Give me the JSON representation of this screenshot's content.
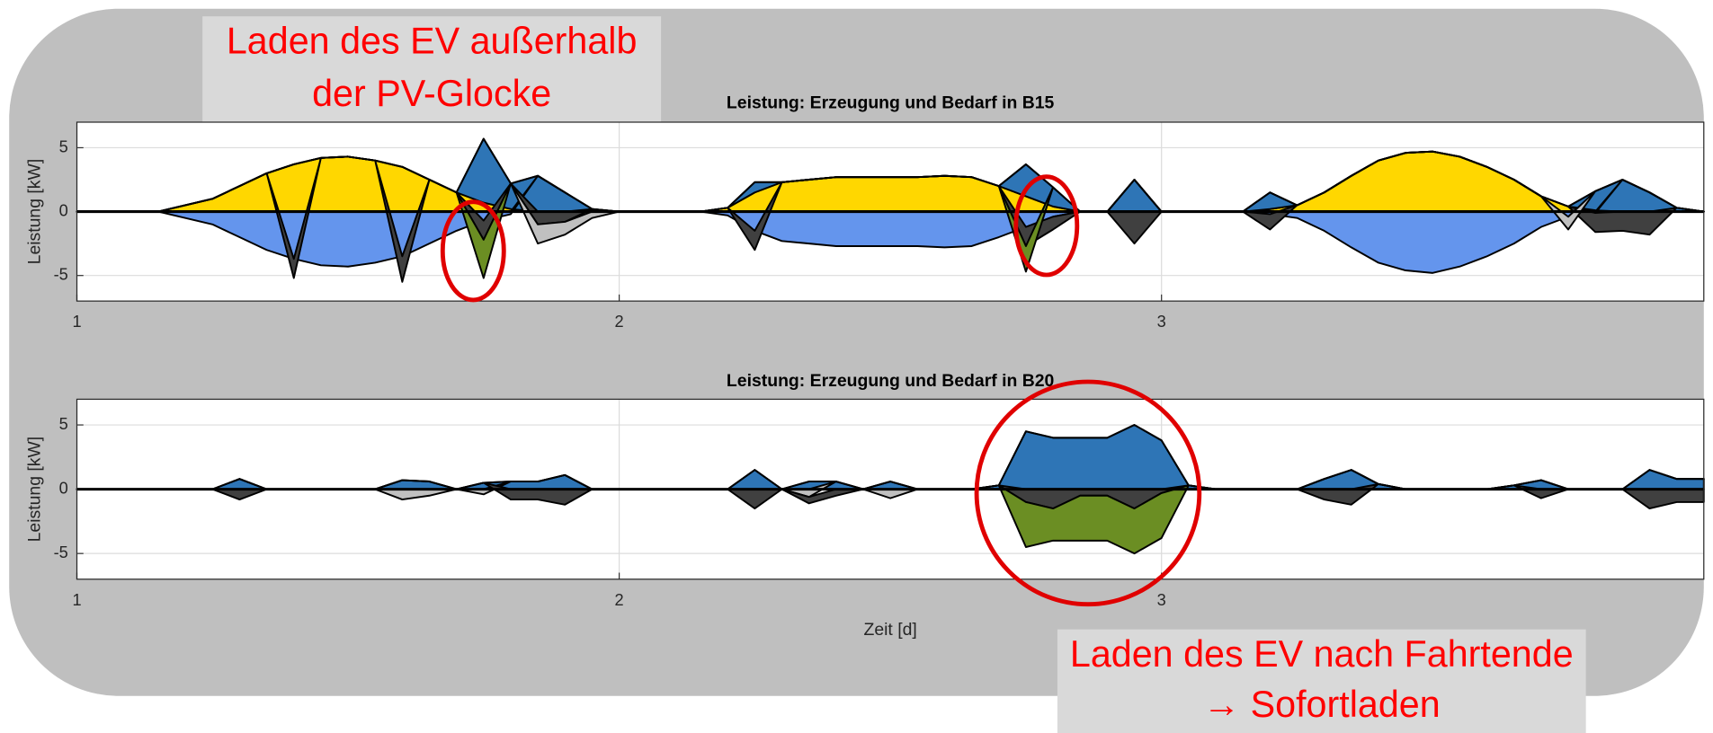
{
  "chart_data": [
    {
      "type": "area",
      "title": "Leistung: Erzeugung und Bedarf in B15",
      "ylabel": "Leistung [kW]",
      "annotation": [
        "Laden des EV außerhalb",
        "der PV-Glocke"
      ],
      "x": [
        1,
        1.05,
        1.1,
        1.15,
        1.2,
        1.25,
        1.3,
        1.35,
        1.4,
        1.45,
        1.5,
        1.55,
        1.6,
        1.65,
        1.7,
        1.75,
        1.8,
        1.85,
        1.9,
        1.95,
        2,
        2.05,
        2.1,
        2.15,
        2.2,
        2.25,
        2.3,
        2.35,
        2.4,
        2.45,
        2.5,
        2.55,
        2.6,
        2.65,
        2.7,
        2.75,
        2.8,
        2.85,
        2.9,
        2.95,
        3,
        3.05,
        3.1,
        3.15,
        3.2,
        3.25,
        3.3,
        3.35,
        3.4,
        3.45,
        3.5,
        3.55,
        3.6,
        3.65,
        3.7,
        3.75,
        3.8,
        3.85,
        3.9,
        3.95,
        4
      ],
      "xlim": [
        1,
        4
      ],
      "xticks": [
        1,
        2,
        3
      ],
      "ylim": [
        -7,
        7
      ],
      "yticks": [
        -5,
        0,
        5
      ],
      "grid": true,
      "series": [
        {
          "color": "#ffd700",
          "values": [
            0,
            0,
            0,
            0,
            0.5,
            1,
            2,
            3,
            3.7,
            4.2,
            4.3,
            4,
            3.5,
            2.5,
            1.5,
            0.7,
            0.2,
            0,
            0,
            0,
            0,
            0,
            0,
            0,
            0.3,
            1.5,
            2.3,
            2.5,
            2.7,
            2.7,
            2.7,
            2.7,
            2.8,
            2.7,
            2,
            1.2,
            0.4,
            0,
            0,
            0,
            0,
            0,
            0,
            0,
            0.2,
            0.5,
            1.5,
            2.8,
            4,
            4.6,
            4.7,
            4.3,
            3.5,
            2.5,
            1.2,
            0.4,
            0.1,
            0,
            0,
            0,
            0
          ]
        },
        {
          "color": "#2e75b6",
          "values": [
            0,
            0,
            0,
            0,
            0,
            0,
            0,
            0,
            0,
            0,
            0,
            0,
            0,
            0,
            0,
            5,
            2,
            2.8,
            1.5,
            0.2,
            0,
            0,
            0,
            0,
            0,
            0.8,
            0,
            0,
            0,
            0,
            0,
            0,
            0,
            0,
            0,
            2.5,
            1.5,
            0,
            0,
            2.5,
            0,
            0,
            0,
            0,
            1.3,
            0,
            0,
            0,
            0,
            0,
            0,
            0,
            0,
            0,
            0,
            0,
            1.5,
            2.5,
            1.5,
            0.3,
            0
          ]
        },
        {
          "color": "#6495ed",
          "values": [
            0,
            0,
            0,
            0,
            -0.5,
            -1,
            -2,
            -3,
            -3.7,
            -4.2,
            -4.3,
            -4,
            -3.5,
            -2.5,
            -1.5,
            -0.7,
            -0.2,
            0,
            0,
            0,
            0,
            0,
            0,
            0,
            -0.3,
            -1.5,
            -2.3,
            -2.5,
            -2.7,
            -2.7,
            -2.7,
            -2.7,
            -2.8,
            -2.7,
            -2,
            -1.2,
            -0.4,
            0,
            0,
            0,
            0,
            0,
            0,
            0,
            -0.2,
            -0.5,
            -1.5,
            -2.8,
            -4,
            -4.6,
            -4.8,
            -4.3,
            -3.5,
            -2.5,
            -1.2,
            -0.4,
            -0.1,
            0,
            0,
            0,
            0
          ]
        },
        {
          "color": "#404040",
          "values": [
            0,
            0,
            0,
            0,
            0,
            0,
            0,
            0,
            -1.5,
            0,
            0,
            0,
            -2,
            0,
            0,
            -1.5,
            0,
            -1,
            -0.8,
            0,
            0,
            0,
            0,
            0,
            0,
            -1.5,
            0,
            0,
            0,
            0,
            0,
            0,
            0,
            0,
            0,
            -1.5,
            -1,
            0,
            0,
            -2.5,
            0,
            0,
            0,
            0,
            -1.2,
            0,
            0,
            0,
            0,
            0,
            0,
            0,
            0,
            0,
            0,
            0,
            -1.5,
            -1.5,
            -1.8,
            0,
            0
          ]
        },
        {
          "color": "#c0c0c0",
          "values": [
            0,
            0,
            0,
            0,
            0,
            0,
            0,
            0,
            0,
            0,
            0,
            0,
            0,
            0,
            0,
            0,
            0,
            -1.5,
            -1,
            -0.5,
            0,
            0,
            0,
            0,
            0,
            0,
            0,
            0,
            0,
            0,
            0,
            0,
            0,
            0,
            0,
            0,
            0,
            0,
            0,
            0,
            0,
            0,
            0,
            0,
            0,
            0,
            0,
            0,
            0,
            0,
            0,
            0,
            0,
            0,
            0,
            -1,
            0,
            0,
            0,
            0,
            0
          ]
        },
        {
          "color": "#6b8e23",
          "values": [
            0,
            0,
            0,
            0,
            0,
            0,
            0,
            0,
            0,
            0,
            0,
            0,
            0,
            0,
            0,
            -3,
            0,
            0,
            0,
            0,
            0,
            0,
            0,
            0,
            0,
            0,
            0,
            0,
            0,
            0,
            0,
            0,
            0,
            0,
            0,
            -2,
            0,
            0,
            0,
            0,
            0,
            0,
            0,
            0,
            0,
            0,
            0,
            0,
            0,
            0,
            0,
            0,
            0,
            0,
            0,
            0,
            0,
            0,
            0,
            0,
            0
          ]
        }
      ]
    },
    {
      "type": "area",
      "title": "Leistung: Erzeugung und Bedarf in B20",
      "ylabel": "Leistung [kW]",
      "xlabel": "Zeit [d]",
      "annotation": [
        "Laden des EV nach Fahrtende",
        "→ Sofortladen"
      ],
      "x": [
        1,
        1.05,
        1.1,
        1.15,
        1.2,
        1.25,
        1.3,
        1.35,
        1.4,
        1.45,
        1.5,
        1.55,
        1.6,
        1.65,
        1.7,
        1.75,
        1.8,
        1.85,
        1.9,
        1.95,
        2,
        2.05,
        2.1,
        2.15,
        2.2,
        2.25,
        2.3,
        2.35,
        2.4,
        2.45,
        2.5,
        2.55,
        2.6,
        2.65,
        2.7,
        2.75,
        2.8,
        2.85,
        2.9,
        2.95,
        3,
        3.05,
        3.1,
        3.15,
        3.2,
        3.25,
        3.3,
        3.35,
        3.4,
        3.45,
        3.5,
        3.55,
        3.6,
        3.65,
        3.7,
        3.75,
        3.8,
        3.85,
        3.9,
        3.95,
        4
      ],
      "xlim": [
        1,
        4
      ],
      "xticks": [
        1,
        2,
        3
      ],
      "ylim": [
        -7,
        7
      ],
      "yticks": [
        -5,
        0,
        5
      ],
      "grid": true,
      "series": [
        {
          "color": "#2e75b6",
          "values": [
            0,
            0,
            0,
            0,
            0,
            0,
            0.8,
            0,
            0,
            0,
            0,
            0,
            0.7,
            0.6,
            0,
            0.5,
            0.6,
            0.6,
            1.1,
            0,
            0,
            0,
            0,
            0,
            0,
            1.5,
            0,
            0.6,
            0.6,
            0,
            0.6,
            0,
            0,
            0,
            0.3,
            4.5,
            4,
            4,
            4,
            5,
            3.8,
            0.3,
            0,
            0,
            0,
            0,
            0.8,
            1.5,
            0.4,
            0,
            0,
            0,
            0,
            0.3,
            0.7,
            0,
            0,
            0,
            1.5,
            0.8,
            0.8
          ]
        },
        {
          "color": "#c0c0c0",
          "values": [
            0,
            0,
            0,
            0,
            0,
            0,
            0,
            0,
            0,
            0,
            0,
            0,
            -0.8,
            -0.5,
            0,
            -0.4,
            0,
            0,
            0,
            0,
            0,
            0,
            0,
            0,
            0,
            0,
            0,
            -0.6,
            0,
            0,
            -0.7,
            0,
            0,
            0,
            0,
            0,
            0,
            0,
            0,
            0,
            0,
            0,
            0,
            0,
            0,
            0,
            0,
            0,
            0,
            0,
            0,
            0,
            0,
            0,
            0,
            0,
            0,
            0,
            0,
            0,
            0
          ]
        },
        {
          "color": "#404040",
          "values": [
            0,
            0,
            0,
            0,
            0,
            0,
            -0.8,
            0,
            0,
            0,
            0,
            0,
            0,
            0,
            0,
            0,
            -0.8,
            -0.8,
            -1.2,
            0,
            0,
            0,
            0,
            0,
            0,
            -1.5,
            0,
            -0.5,
            -0.5,
            0,
            0,
            0,
            0,
            0,
            0,
            -1,
            -1.5,
            -0.5,
            -0.5,
            -1.5,
            -0.3,
            0,
            0,
            0,
            0,
            0,
            -0.8,
            -1.2,
            0,
            0,
            0,
            0,
            0,
            0,
            -0.7,
            0,
            0,
            0,
            -1.5,
            -1,
            -1
          ]
        },
        {
          "color": "#6b8e23",
          "values": [
            0,
            0,
            0,
            0,
            0,
            0,
            0,
            0,
            0,
            0,
            0,
            0,
            0,
            0,
            0,
            0,
            0,
            0,
            0,
            0,
            0,
            0,
            0,
            0,
            0,
            0,
            0,
            0,
            0,
            0,
            0,
            0,
            0,
            0,
            0,
            -3.5,
            -2.5,
            -3.5,
            -3.5,
            -3.5,
            -3.5,
            0,
            0,
            0,
            0,
            0,
            0,
            0,
            0,
            0,
            0,
            0,
            0,
            0,
            0,
            0,
            0,
            0,
            0,
            0,
            0
          ]
        }
      ]
    }
  ]
}
